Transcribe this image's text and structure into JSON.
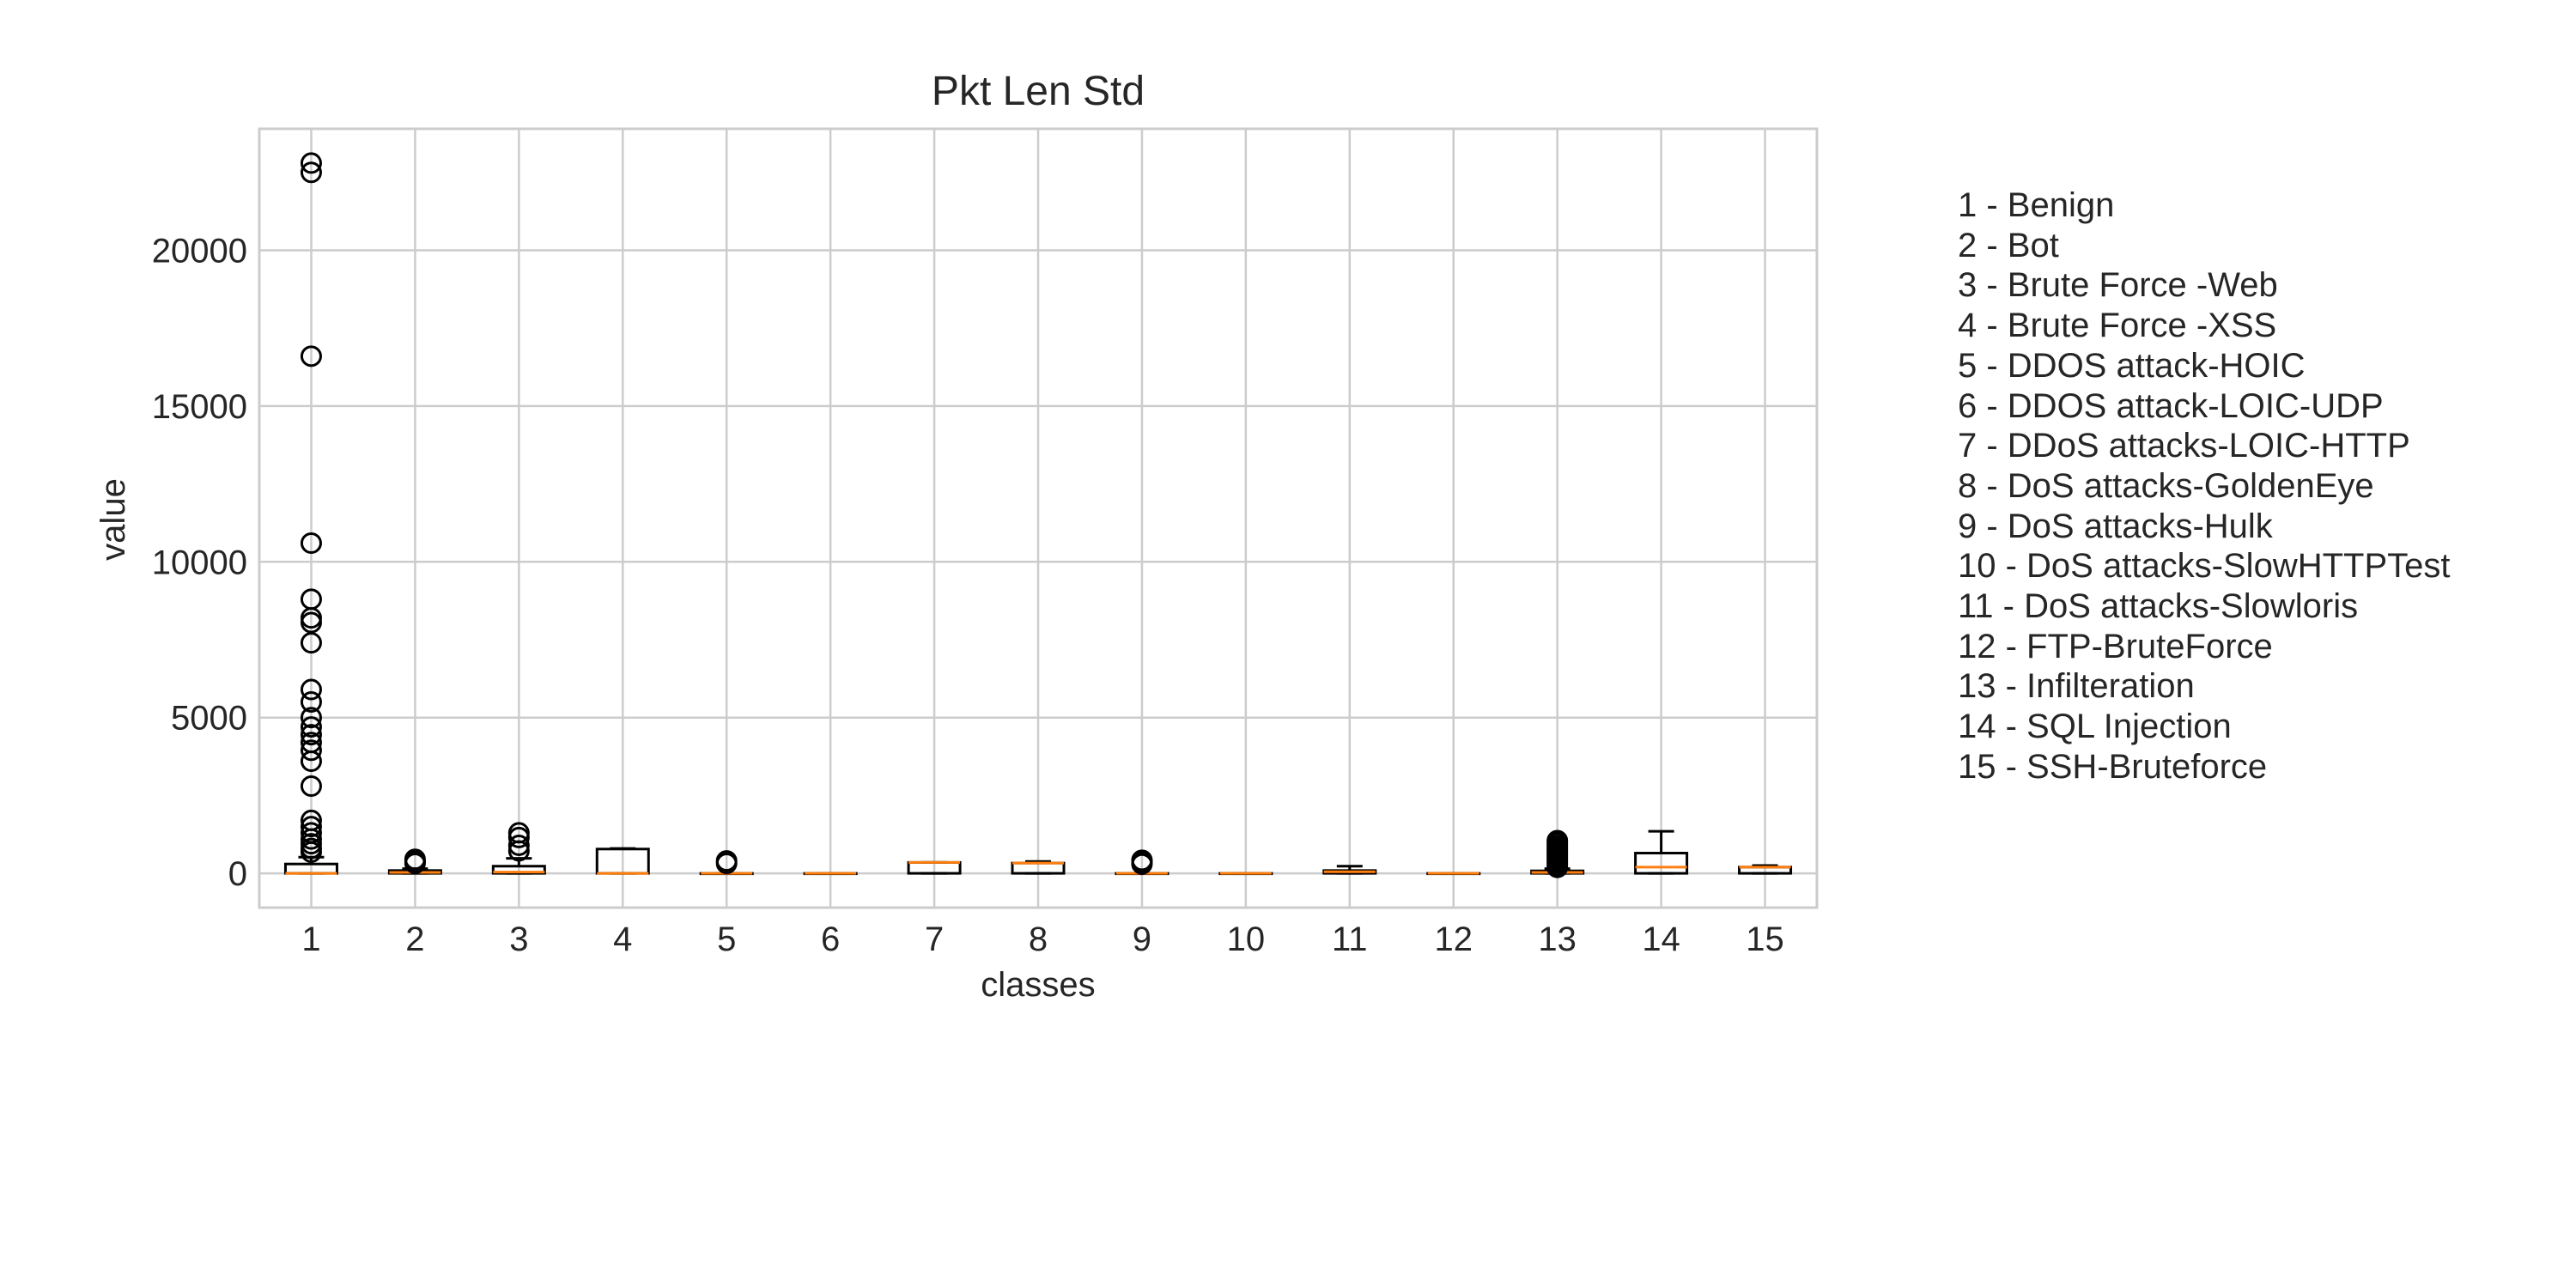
{
  "chart_data": {
    "type": "box",
    "title": "Pkt Len Std",
    "xlabel": "classes",
    "ylabel": "value",
    "ylim": [
      -1100,
      23900
    ],
    "yticks": [
      0,
      5000,
      10000,
      15000,
      20000
    ],
    "grid": true,
    "colors": {
      "box": "#000000",
      "median": "#ff7f0e",
      "grid": "#cccccc",
      "spine": "#cccccc",
      "text": "#262626"
    },
    "categories": [
      "1",
      "2",
      "3",
      "4",
      "5",
      "6",
      "7",
      "8",
      "9",
      "10",
      "11",
      "12",
      "13",
      "14",
      "15"
    ],
    "boxes": [
      {
        "label": "1",
        "whisker_low": 0,
        "q1": 0,
        "median": 0,
        "q3": 300,
        "whisker_high": 520,
        "outliers": [
          22800,
          22500,
          16600,
          10600,
          8800,
          8200,
          8050,
          7400,
          5900,
          5500,
          5000,
          4700,
          4450,
          4200,
          3950,
          3600,
          2800,
          1700,
          1500,
          1300,
          1100,
          950,
          800,
          680
        ]
      },
      {
        "label": "2",
        "whisker_low": 0,
        "q1": 0,
        "median": 30,
        "q3": 90,
        "whisker_high": 150,
        "outliers": [
          450,
          400,
          360,
          320
        ]
      },
      {
        "label": "3",
        "whisker_low": 0,
        "q1": 0,
        "median": 40,
        "q3": 230,
        "whisker_high": 480,
        "outliers": [
          1300,
          1150,
          900,
          720
        ]
      },
      {
        "label": "4",
        "whisker_low": 0,
        "q1": 0,
        "median": 0,
        "q3": 780,
        "whisker_high": 800,
        "outliers": []
      },
      {
        "label": "5",
        "whisker_low": 0,
        "q1": 0,
        "median": 0,
        "q3": 0,
        "whisker_high": 0,
        "outliers": [
          400,
          320
        ]
      },
      {
        "label": "6",
        "whisker_low": 0,
        "q1": 0,
        "median": 0,
        "q3": 0,
        "whisker_high": 0,
        "outliers": []
      },
      {
        "label": "7",
        "whisker_low": 0,
        "q1": 0,
        "median": 350,
        "q3": 350,
        "whisker_high": 350,
        "outliers": []
      },
      {
        "label": "8",
        "whisker_low": 0,
        "q1": 0,
        "median": 330,
        "q3": 330,
        "whisker_high": 380,
        "outliers": []
      },
      {
        "label": "9",
        "whisker_low": 0,
        "q1": 0,
        "median": 0,
        "q3": 0,
        "whisker_high": 0,
        "outliers": [
          420,
          360,
          300
        ]
      },
      {
        "label": "10",
        "whisker_low": 0,
        "q1": 0,
        "median": 0,
        "q3": 0,
        "whisker_high": 0,
        "outliers": []
      },
      {
        "label": "11",
        "whisker_low": 0,
        "q1": 0,
        "median": 50,
        "q3": 90,
        "whisker_high": 230,
        "outliers": []
      },
      {
        "label": "12",
        "whisker_low": 0,
        "q1": 0,
        "median": 0,
        "q3": 0,
        "whisker_high": 0,
        "outliers": []
      },
      {
        "label": "13",
        "whisker_low": 0,
        "q1": 0,
        "median": 30,
        "q3": 80,
        "whisker_high": 150,
        "outliers": [
          1050,
          980,
          900,
          820,
          750,
          680,
          610,
          540,
          470,
          400,
          330,
          260,
          190
        ]
      },
      {
        "label": "14",
        "whisker_low": 0,
        "q1": 0,
        "median": 200,
        "q3": 650,
        "whisker_high": 1350,
        "outliers": []
      },
      {
        "label": "15",
        "whisker_low": 0,
        "q1": 0,
        "median": 200,
        "q3": 200,
        "whisker_high": 250,
        "outliers": []
      }
    ],
    "legend": [
      "1 - Benign",
      "2 - Bot",
      "3 - Brute Force -Web",
      "4 - Brute Force -XSS",
      "5 - DDOS attack-HOIC",
      "6 - DDOS attack-LOIC-UDP",
      "7 - DDoS attacks-LOIC-HTTP",
      "8 - DoS attacks-GoldenEye",
      "9 - DoS attacks-Hulk",
      "10 - DoS attacks-SlowHTTPTest",
      "11 - DoS attacks-Slowloris",
      "12 - FTP-BruteForce",
      "13 - Infilteration",
      "14 - SQL Injection",
      "15 - SSH-Bruteforce"
    ]
  }
}
